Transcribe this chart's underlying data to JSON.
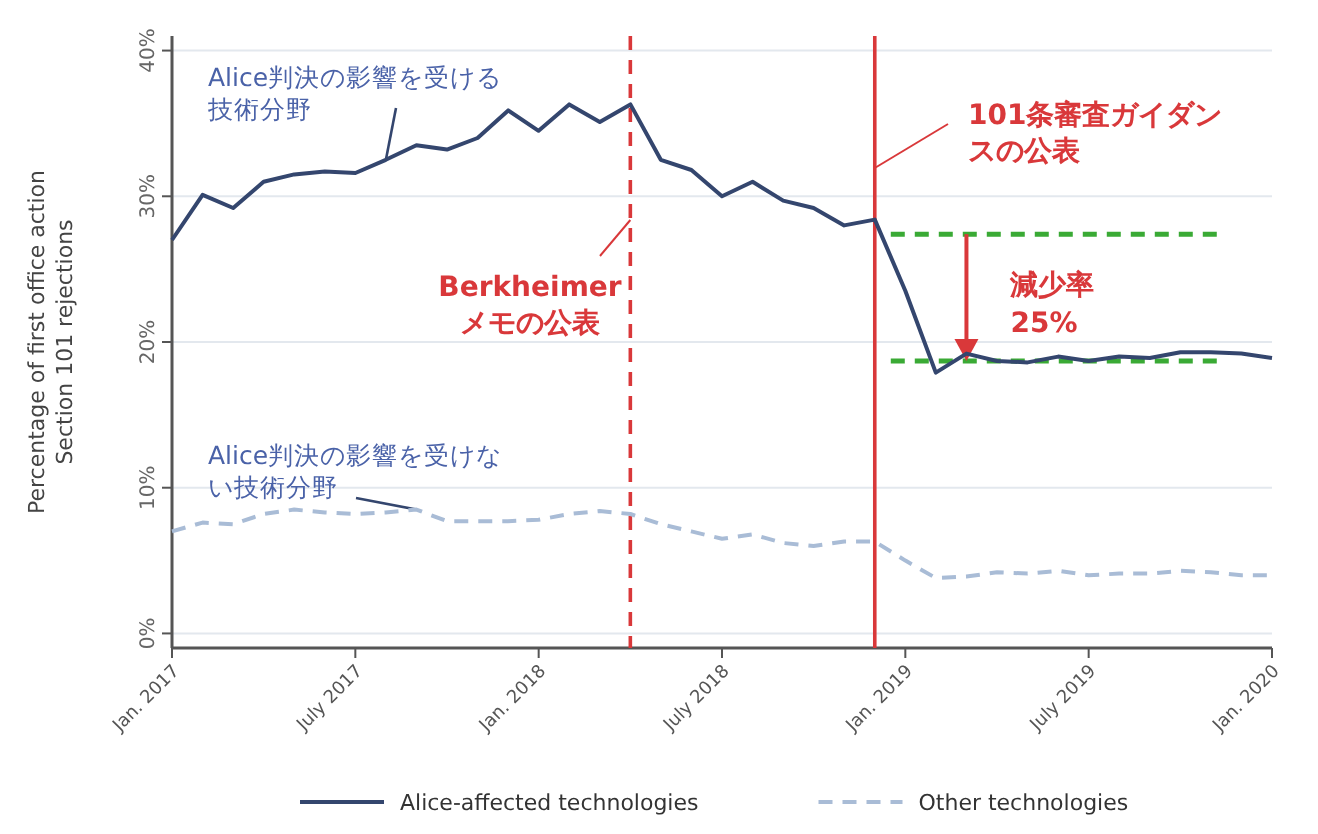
{
  "chart_data": {
    "type": "line",
    "ylabel": "Percentage of first office action\nSection 101 rejections",
    "x": [
      "2017-01",
      "2017-02",
      "2017-03",
      "2017-04",
      "2017-05",
      "2017-06",
      "2017-07",
      "2017-08",
      "2017-09",
      "2017-10",
      "2017-11",
      "2017-12",
      "2018-01",
      "2018-02",
      "2018-03",
      "2018-04",
      "2018-05",
      "2018-06",
      "2018-07",
      "2018-08",
      "2018-09",
      "2018-10",
      "2018-11",
      "2018-12",
      "2019-01",
      "2019-02",
      "2019-03",
      "2019-04",
      "2019-05",
      "2019-06",
      "2019-07",
      "2019-08",
      "2019-09",
      "2019-10",
      "2019-11",
      "2019-12",
      "2020-01"
    ],
    "series": [
      {
        "name": "Alice-affected technologies",
        "color": "#34466e",
        "line_style": "solid",
        "values": [
          27,
          30.1,
          29.2,
          31,
          31.5,
          31.7,
          31.6,
          32.5,
          33.5,
          33.2,
          34,
          35.9,
          34.5,
          36.3,
          35.1,
          36.3,
          32.5,
          31.8,
          30,
          31,
          29.7,
          29.2,
          28,
          28.4,
          23.5,
          17.9,
          19.2,
          18.7,
          18.6,
          19,
          18.7,
          19,
          18.9,
          19.3,
          19.3,
          19.2,
          18.9
        ]
      },
      {
        "name": "Other technologies",
        "color": "#a9bcd6",
        "line_style": "dashed",
        "values": [
          7,
          7.6,
          7.5,
          8.2,
          8.5,
          8.3,
          8.2,
          8.3,
          8.5,
          7.7,
          7.7,
          7.7,
          7.8,
          8.2,
          8.4,
          8.2,
          7.5,
          7,
          6.5,
          6.8,
          6.2,
          6,
          6.3,
          6.3,
          5,
          3.8,
          3.9,
          4.2,
          4.1,
          4.3,
          4,
          4.1,
          4.1,
          4.3,
          4.2,
          4,
          4
        ]
      }
    ],
    "xlim": [
      "2017-01",
      "2020-01"
    ],
    "ylim": [
      -1,
      41
    ],
    "xticks": [
      {
        "value": "2017-01",
        "label": "Jan. 2017"
      },
      {
        "value": "2017-07",
        "label": "July 2017"
      },
      {
        "value": "2018-01",
        "label": "Jan. 2018"
      },
      {
        "value": "2018-07",
        "label": "July 2018"
      },
      {
        "value": "2019-01",
        "label": "Jan. 2019"
      },
      {
        "value": "2019-07",
        "label": "July 2019"
      },
      {
        "value": "2020-01",
        "label": "Jan. 2020"
      }
    ],
    "yticks": [
      {
        "value": 0,
        "label": "0%"
      },
      {
        "value": 10,
        "label": "10%"
      },
      {
        "value": 20,
        "label": "20%"
      },
      {
        "value": 30,
        "label": "30%"
      },
      {
        "value": 40,
        "label": "40%"
      }
    ],
    "grid": "y",
    "legend": "bottom",
    "ref_lines": [
      {
        "axis": "x",
        "value": "2018-04",
        "label": "Berkheimerメモの公表",
        "color": "#d9383a",
        "line_style": "dashed"
      },
      {
        "axis": "x",
        "value": "2018-12",
        "label": "101条審査ガイダンスの公表",
        "color": "#d9383a",
        "line_style": "solid"
      },
      {
        "axis": "y",
        "value": 27.4,
        "color": "#3aaa35",
        "line_style": "dashed"
      },
      {
        "axis": "y",
        "value": 18.7,
        "color": "#3aaa35",
        "line_style": "dashed"
      }
    ],
    "annotations": [
      {
        "text": "Alice判決の影響を受ける技術分野",
        "x": "2017-08",
        "y": 32.5
      },
      {
        "text": "Alice判決の影響を受けない技術分野",
        "x": "2017-09",
        "y": 8.5
      },
      {
        "text": "減少率\n25%",
        "x": "2019-03",
        "y": 18.7
      }
    ]
  }
}
